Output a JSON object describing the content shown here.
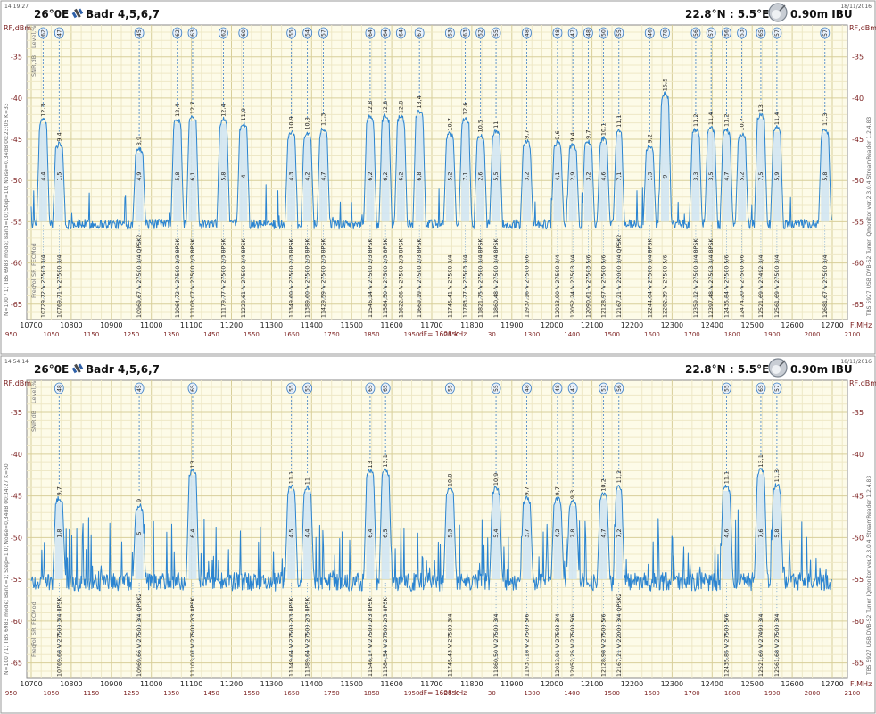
{
  "colors": {
    "plot_bg": "#fdfbe8",
    "grid_major": "#d8cf9a",
    "grid_minor": "#eee8c6",
    "trace": "#2b84d0",
    "fill": "#cfe4f3",
    "axis_text": "#7a1d1d",
    "label_text": "#222222",
    "marker": "#3d7fc6"
  },
  "chart_data": [
    {
      "type": "line",
      "id": "top",
      "title": "26°0E",
      "subtitle": "Badr 4,5,6,7",
      "location": "22.8°N : 5.5°E",
      "dish": "0.90m IBU",
      "timestamp_left": "14:19:27",
      "timestamp_right": "18/11/2016",
      "ylabel": "RF,dBm",
      "xlabel": "F,MHz",
      "ylim": [
        -66,
        -32
      ],
      "xlim": [
        10700,
        12750
      ],
      "yticks": [
        -35,
        -40,
        -45,
        -50,
        -55,
        -60,
        -65
      ],
      "xticks": [
        10700,
        10800,
        10900,
        11000,
        11100,
        11200,
        11300,
        11400,
        11500,
        11600,
        11700,
        11800,
        11900,
        12000,
        12100,
        12200,
        12300,
        12400,
        12500,
        12600,
        12700
      ],
      "if_ticks": [
        950,
        1050,
        1150,
        1250,
        1350,
        1450,
        1550,
        1650,
        1750,
        1850,
        1950,
        2050,
        30,
        1300,
        1400,
        1500,
        1600,
        1700,
        1800,
        1900,
        2000,
        2100
      ],
      "df_label": "dF= 1608 kHz",
      "side_left": "N=100 / 1; TBS 6983 mode; Band=10; Step=10; Noise=0.34dB   00:23:05   K=33",
      "side_right": "TBS 5927 USB DVB-S2 Tuner    IQmonitor ver.2.3.0.4   StreamReader 1.2.4.83",
      "row_labels": [
        "Level,%",
        "SNR,dB",
        "Mod",
        "FEC",
        "SR",
        "Pol",
        "Freq"
      ],
      "noise_floor": -55,
      "transponders": [
        {
          "freq": 10729.72,
          "level_db": -42.6,
          "snr": "4,4",
          "peak_label": "12,3",
          "signal": "62",
          "sr": 27503,
          "fec": "3/4",
          "mod": "",
          "pol": "V",
          "bw": 24
        },
        {
          "freq": 10769.71,
          "level_db": -45.6,
          "snr": "1,5",
          "peak_label": "9,4",
          "signal": "47",
          "sr": 27500,
          "fec": "3/4",
          "mod": "",
          "pol": "V",
          "bw": 24
        },
        {
          "freq": 10969.67,
          "level_db": -46.1,
          "snr": "4,9",
          "peak_label": "8,9",
          "signal": "45",
          "sr": 27500,
          "fec": "3/4",
          "mod": "QPSK2",
          "pol": "V",
          "bw": 24
        },
        {
          "freq": 11064.72,
          "level_db": -42.6,
          "snr": "5,8",
          "peak_label": "12,4",
          "signal": "62",
          "sr": 27500,
          "fec": "2/3",
          "mod": "8PSK",
          "pol": "V",
          "bw": 24
        },
        {
          "freq": 11103.07,
          "level_db": -42.3,
          "snr": "6,1",
          "peak_label": "12,7",
          "signal": "63",
          "sr": 27500,
          "fec": "2/3",
          "mod": "8PSK",
          "pol": "V",
          "bw": 24
        },
        {
          "freq": 11179.77,
          "level_db": -42.6,
          "snr": "5,8",
          "peak_label": "12,4",
          "signal": "62",
          "sr": 27500,
          "fec": "2/3",
          "mod": "8PSK",
          "pol": "V",
          "bw": 24
        },
        {
          "freq": 11229.61,
          "level_db": -43.1,
          "snr": "4",
          "peak_label": "11,9",
          "signal": "60",
          "sr": 27500,
          "fec": "3/4",
          "mod": "8PSK",
          "pol": "V",
          "bw": 24
        },
        {
          "freq": 11349.6,
          "level_db": -44.1,
          "snr": "4,3",
          "peak_label": "10,9",
          "signal": "55",
          "sr": 27500,
          "fec": "2/3",
          "mod": "8PSK",
          "pol": "V",
          "bw": 24
        },
        {
          "freq": 11389.6,
          "level_db": -44.2,
          "snr": "4,2",
          "peak_label": "10,8",
          "signal": "54",
          "sr": 27500,
          "fec": "2/3",
          "mod": "8PSK",
          "pol": "V",
          "bw": 24
        },
        {
          "freq": 11429.59,
          "level_db": -43.7,
          "snr": "4,7",
          "peak_label": "11,3",
          "signal": "57",
          "sr": 27500,
          "fec": "2/3",
          "mod": "8PSK",
          "pol": "V",
          "bw": 24
        },
        {
          "freq": 11546.14,
          "level_db": -42.2,
          "snr": "6,2",
          "peak_label": "12,8",
          "signal": "64",
          "sr": 27500,
          "fec": "2/3",
          "mod": "8PSK",
          "pol": "V",
          "bw": 24
        },
        {
          "freq": 11584.5,
          "level_db": -42.2,
          "snr": "6,2",
          "peak_label": "12,8",
          "signal": "64",
          "sr": 27500,
          "fec": "2/3",
          "mod": "8PSK",
          "pol": "V",
          "bw": 24
        },
        {
          "freq": 11622.86,
          "level_db": -42.2,
          "snr": "6,2",
          "peak_label": "12,8",
          "signal": "64",
          "sr": 27500,
          "fec": "2/3",
          "mod": "8PSK",
          "pol": "V",
          "bw": 24
        },
        {
          "freq": 11669.19,
          "level_db": -41.6,
          "snr": "6,8",
          "peak_label": "13,4",
          "signal": "67",
          "sr": 27500,
          "fec": "2/3",
          "mod": "8PSK",
          "pol": "V",
          "bw": 24
        },
        {
          "freq": 11745.41,
          "level_db": -44.3,
          "snr": "5,2",
          "peak_label": "10,7",
          "signal": "53",
          "sr": 27500,
          "fec": "3/4",
          "mod": "",
          "pol": "V",
          "bw": 24
        },
        {
          "freq": 11783.77,
          "level_db": -42.4,
          "snr": "7,1",
          "peak_label": "12,6",
          "signal": "63",
          "sr": 27503,
          "fec": "3/4",
          "mod": "",
          "pol": "V",
          "bw": 24
        },
        {
          "freq": 11821.75,
          "level_db": -44.5,
          "snr": "2,6",
          "peak_label": "10,5",
          "signal": "52",
          "sr": 27500,
          "fec": "3/4",
          "mod": "8PSK",
          "pol": "V",
          "bw": 24
        },
        {
          "freq": 11860.48,
          "level_db": -44.0,
          "snr": "5,5",
          "peak_label": "11",
          "signal": "55",
          "sr": 27500,
          "fec": "3/4",
          "mod": "8PSK",
          "pol": "V",
          "bw": 24
        },
        {
          "freq": 11937.16,
          "level_db": -45.3,
          "snr": "3,2",
          "peak_label": "9,7",
          "signal": "48",
          "sr": 27500,
          "fec": "5/6",
          "mod": "",
          "pol": "V",
          "bw": 24
        },
        {
          "freq": 12013.9,
          "level_db": -45.4,
          "snr": "4,1",
          "peak_label": "9,6",
          "signal": "48",
          "sr": 27500,
          "fec": "3/4",
          "mod": "",
          "pol": "V",
          "bw": 24
        },
        {
          "freq": 12052.24,
          "level_db": -45.6,
          "snr": "2,9",
          "peak_label": "9,4",
          "signal": "47",
          "sr": 27503,
          "fec": "3/4",
          "mod": "",
          "pol": "V",
          "bw": 24
        },
        {
          "freq": 12090.61,
          "level_db": -45.3,
          "snr": "3,2",
          "peak_label": "9,7",
          "signal": "48",
          "sr": 27503,
          "fec": "5/6",
          "mod": "",
          "pol": "V",
          "bw": 24
        },
        {
          "freq": 12128.97,
          "level_db": -44.9,
          "snr": "4,6",
          "peak_label": "10,1",
          "signal": "50",
          "sr": 27500,
          "fec": "5/6",
          "mod": "",
          "pol": "V",
          "bw": 24
        },
        {
          "freq": 12167.21,
          "level_db": -43.9,
          "snr": "7,1",
          "peak_label": "11,1",
          "signal": "55",
          "sr": 22000,
          "fec": "3/4",
          "mod": "QPSK2",
          "pol": "V",
          "bw": 20
        },
        {
          "freq": 12244.04,
          "level_db": -45.8,
          "snr": "1,3",
          "peak_label": "9,2",
          "signal": "46",
          "sr": 27500,
          "fec": "3/4",
          "mod": "8PSK",
          "pol": "V",
          "bw": 24
        },
        {
          "freq": 12282.39,
          "level_db": -39.5,
          "snr": "9",
          "peak_label": "15,5",
          "signal": "78",
          "sr": 27500,
          "fec": "5/6",
          "mod": "",
          "pol": "V",
          "bw": 24
        },
        {
          "freq": 12359.12,
          "level_db": -43.8,
          "snr": "3,3",
          "peak_label": "11,2",
          "signal": "56",
          "sr": 27500,
          "fec": "3/4",
          "mod": "8PSK",
          "pol": "V",
          "bw": 24
        },
        {
          "freq": 12397.48,
          "level_db": -43.6,
          "snr": "3,5",
          "peak_label": "11,4",
          "signal": "57",
          "sr": 27503,
          "fec": "3/4",
          "mod": "8PSK",
          "pol": "V",
          "bw": 24
        },
        {
          "freq": 12435.84,
          "level_db": -43.8,
          "snr": "4,7",
          "peak_label": "11,2",
          "signal": "56",
          "sr": 27500,
          "fec": "5/6",
          "mod": "",
          "pol": "V",
          "bw": 24
        },
        {
          "freq": 12474.2,
          "level_db": -44.3,
          "snr": "5,2",
          "peak_label": "10,7",
          "signal": "53",
          "sr": 27500,
          "fec": "5/6",
          "mod": "",
          "pol": "V",
          "bw": 24
        },
        {
          "freq": 12521.69,
          "level_db": -42.0,
          "snr": "7,5",
          "peak_label": "13",
          "signal": "65",
          "sr": 27492,
          "fec": "3/4",
          "mod": "",
          "pol": "V",
          "bw": 24
        },
        {
          "freq": 12561.69,
          "level_db": -43.6,
          "snr": "5,9",
          "peak_label": "11,4",
          "signal": "57",
          "sr": 27500,
          "fec": "3/4",
          "mod": "",
          "pol": "V",
          "bw": 24
        },
        {
          "freq": 12681.67,
          "level_db": -43.7,
          "snr": "5,8",
          "peak_label": "11,3",
          "signal": "57",
          "sr": 27500,
          "fec": "3/4",
          "mod": "",
          "pol": "V",
          "bw": 24
        }
      ]
    },
    {
      "type": "line",
      "id": "bottom",
      "title": "26°0E",
      "subtitle": "Badr 4,5,6,7",
      "location": "22.8°N : 5.5°E",
      "dish": "0.90m IBU",
      "timestamp_left": "14:54:14",
      "timestamp_right": "18/11/2016",
      "ylabel": "RF,dBm",
      "xlabel": "F,MHz",
      "ylim": [
        -66,
        -32
      ],
      "xlim": [
        10700,
        12750
      ],
      "yticks": [
        -35,
        -40,
        -45,
        -50,
        -55,
        -60,
        -65
      ],
      "xticks": [
        10700,
        10800,
        10900,
        11000,
        11100,
        11200,
        11300,
        11400,
        11500,
        11600,
        11700,
        11800,
        11900,
        12000,
        12100,
        12200,
        12300,
        12400,
        12500,
        12600,
        12700
      ],
      "if_ticks": [
        950,
        1050,
        1150,
        1250,
        1350,
        1450,
        1550,
        1650,
        1750,
        1850,
        1950,
        2050,
        30,
        1300,
        1400,
        1500,
        1600,
        1700,
        1800,
        1900,
        2000,
        2100
      ],
      "df_label": "dF= 1608 kHz",
      "side_left": "N=100 / 1; TBS 6983 mode; Band=1; Step=1,0; Noise=0,34dB   00:34:27   K=50",
      "side_right": "TBS 5927 USB DVB-S2 Tuner    IQmonitor ver.2.3.0.4   StreamReader 1.2.4.83",
      "row_labels": [
        "Level,%",
        "SNR,dB",
        "Mod",
        "FEC",
        "SR",
        "Pol",
        "Freq"
      ],
      "noise_floor": -55,
      "transponders": [
        {
          "freq": 10769.68,
          "level_db": -45.3,
          "snr": "1,8",
          "peak_label": "9,7",
          "signal": "48",
          "sr": 27500,
          "fec": "3/4",
          "mod": "8PSK",
          "pol": "V",
          "bw": 24
        },
        {
          "freq": 10969.66,
          "level_db": -46.1,
          "snr": "5",
          "peak_label": "9",
          "signal": "45",
          "sr": 27500,
          "fec": "3/4",
          "mod": "QPSK2",
          "pol": "V",
          "bw": 24
        },
        {
          "freq": 11103.07,
          "level_db": -42.0,
          "snr": "6,4",
          "peak_label": "13",
          "signal": "65",
          "sr": 27500,
          "fec": "2/3",
          "mod": "8PSK",
          "pol": "V",
          "bw": 24
        },
        {
          "freq": 11349.64,
          "level_db": -43.9,
          "snr": "4,5",
          "peak_label": "11,1",
          "signal": "55",
          "sr": 27500,
          "fec": "2/3",
          "mod": "8PSK",
          "pol": "V",
          "bw": 24
        },
        {
          "freq": 11389.64,
          "level_db": -44.0,
          "snr": "4,4",
          "peak_label": "11",
          "signal": "55",
          "sr": 27500,
          "fec": "2/3",
          "mod": "8PSK",
          "pol": "V",
          "bw": 24
        },
        {
          "freq": 11546.17,
          "level_db": -42.0,
          "snr": "6,4",
          "peak_label": "13",
          "signal": "65",
          "sr": 27500,
          "fec": "2/3",
          "mod": "8PSK",
          "pol": "V",
          "bw": 24
        },
        {
          "freq": 11584.54,
          "level_db": -41.9,
          "snr": "6,5",
          "peak_label": "13,1",
          "signal": "65",
          "sr": 27500,
          "fec": "2/3",
          "mod": "8PSK",
          "pol": "V",
          "bw": 24
        },
        {
          "freq": 11745.43,
          "level_db": -44.2,
          "snr": "5,3",
          "peak_label": "10,8",
          "signal": "55",
          "sr": 27500,
          "fec": "3/4",
          "mod": "",
          "pol": "V",
          "bw": 24
        },
        {
          "freq": 11860.5,
          "level_db": -44.1,
          "snr": "5,4",
          "peak_label": "10,9",
          "signal": "55",
          "sr": 27500,
          "fec": "3/4",
          "mod": "",
          "pol": "V",
          "bw": 24
        },
        {
          "freq": 11937.18,
          "level_db": -45.3,
          "snr": "3,7",
          "peak_label": "9,7",
          "signal": "48",
          "sr": 27500,
          "fec": "5/6",
          "mod": "",
          "pol": "V",
          "bw": 24
        },
        {
          "freq": 12013.91,
          "level_db": -45.3,
          "snr": "4,2",
          "peak_label": "9,7",
          "signal": "48",
          "sr": 27503,
          "fec": "3/4",
          "mod": "",
          "pol": "V",
          "bw": 24
        },
        {
          "freq": 12052.25,
          "level_db": -45.7,
          "snr": "2,8",
          "peak_label": "9,3",
          "signal": "47",
          "sr": 27500,
          "fec": "5/6",
          "mod": "",
          "pol": "V",
          "bw": 24
        },
        {
          "freq": 12128.98,
          "level_db": -44.8,
          "snr": "4,7",
          "peak_label": "10,2",
          "signal": "51",
          "sr": 27500,
          "fec": "5/6",
          "mod": "",
          "pol": "V",
          "bw": 24
        },
        {
          "freq": 12167.21,
          "level_db": -43.8,
          "snr": "7,2",
          "peak_label": "11,2",
          "signal": "56",
          "sr": 22000,
          "fec": "3/4",
          "mod": "QPSK2",
          "pol": "V",
          "bw": 20
        },
        {
          "freq": 12435.85,
          "level_db": -43.9,
          "snr": "4,6",
          "peak_label": "11,1",
          "signal": "55",
          "sr": 27500,
          "fec": "5/6",
          "mod": "",
          "pol": "V",
          "bw": 24
        },
        {
          "freq": 12521.69,
          "level_db": -41.9,
          "snr": "7,6",
          "peak_label": "13,1",
          "signal": "65",
          "sr": 27490,
          "fec": "3/4",
          "mod": "",
          "pol": "V",
          "bw": 24
        },
        {
          "freq": 12561.68,
          "level_db": -43.7,
          "snr": "5,8",
          "peak_label": "11,3",
          "signal": "57",
          "sr": 27500,
          "fec": "3/4",
          "mod": "",
          "pol": "V",
          "bw": 24
        }
      ]
    }
  ]
}
